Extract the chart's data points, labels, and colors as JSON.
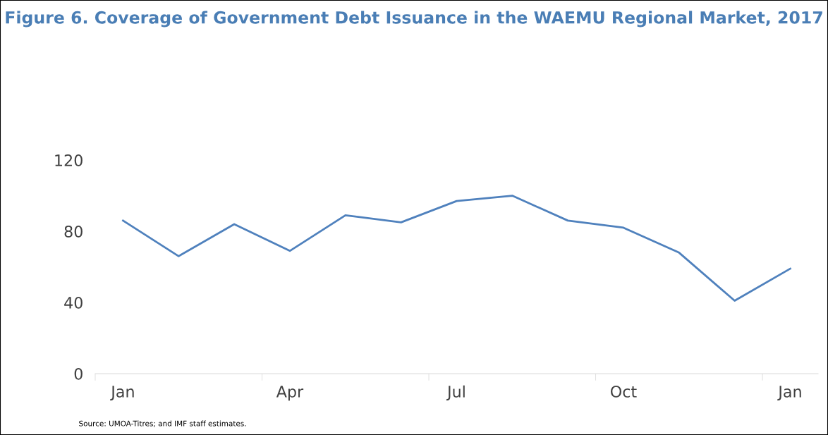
{
  "chart_data": {
    "type": "line",
    "title": "Figure 6. Coverage of Government Debt Issuance in the WAEMU Regional Market, 2017",
    "categories": [
      "Jan",
      null,
      null,
      "Apr",
      null,
      null,
      "Jul",
      null,
      null,
      "Oct",
      null,
      null,
      "Jan"
    ],
    "series": [
      {
        "color": "#4f81bd",
        "values": [
          86,
          66,
          84,
          69,
          89,
          85,
          97,
          100,
          86,
          82,
          68,
          41,
          59
        ]
      }
    ],
    "ylim": [
      0,
      120
    ],
    "yticks": [
      0,
      40,
      80,
      120
    ],
    "grid": false,
    "marker": "none",
    "line_style": "solid",
    "annotations": [
      "Source: UMOA-Titres; and IMF staff estimates."
    ]
  }
}
